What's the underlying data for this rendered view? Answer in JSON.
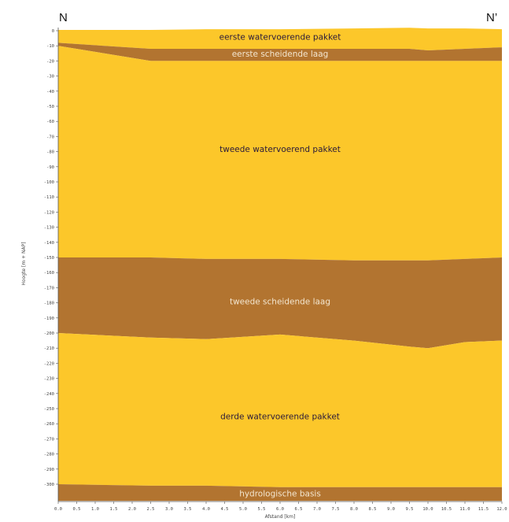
{
  "chart_data": {
    "type": "area",
    "corner_labels": {
      "left": "N",
      "right": "N’"
    },
    "xlabel": "Afstand [km]",
    "ylabel": "Hoogte [m + NAP]",
    "xlim": [
      0,
      12
    ],
    "ylim": [
      -311,
      2
    ],
    "xticks": [
      "0.0",
      "0.5",
      "1.0",
      "1.5",
      "2.0",
      "2.5",
      "3.0",
      "3.5",
      "4.0",
      "4.5",
      "5.0",
      "5.5",
      "6.0",
      "6.5",
      "7.0",
      "7.5",
      "8.0",
      "8.5",
      "9.0",
      "9.5",
      "10.0",
      "10.5",
      "11.0",
      "11.5",
      "12.0"
    ],
    "yticks": [
      0,
      -10,
      -20,
      -30,
      -40,
      -50,
      -60,
      -70,
      -80,
      -90,
      -100,
      -110,
      -120,
      -130,
      -140,
      -150,
      -160,
      -170,
      -180,
      -190,
      -200,
      -210,
      -220,
      -230,
      -240,
      -250,
      -260,
      -270,
      -280,
      -290,
      -300
    ],
    "grid": false,
    "colors": {
      "aquifer": "#FCC72A",
      "aquitard": "#B27430"
    },
    "x": [
      0,
      2.5,
      4,
      6,
      8,
      9.5,
      10,
      11,
      12
    ],
    "boundaries": {
      "surface": [
        0.5,
        0.5,
        1,
        1,
        1.5,
        2,
        1.5,
        1.5,
        1
      ],
      "top_scheidende_1": [
        -8,
        -12,
        -12,
        -12,
        -12,
        -12,
        -13,
        -12,
        -11
      ],
      "base_scheidende_1": [
        -10,
        -20,
        -20,
        -20,
        -20,
        -20,
        -20,
        -20,
        -20
      ],
      "top_scheidende_2": [
        -150,
        -150,
        -151,
        -151,
        -152,
        -152,
        -152,
        -151,
        -150
      ],
      "base_scheidende_2": [
        -200,
        -203,
        -204,
        -201,
        -205,
        -209,
        -210,
        -206,
        -205
      ],
      "top_basis": [
        -300,
        -301,
        -301,
        -302,
        -302,
        -302,
        -302,
        -302,
        -302
      ],
      "bottom": [
        -311,
        -311,
        -311,
        -311,
        -311,
        -311,
        -311,
        -311,
        -311
      ]
    },
    "layers": [
      {
        "name": "eerste watervoerende pakket",
        "top": "surface",
        "base": "top_scheidende_1",
        "kind": "aquifer",
        "label_color": "#2a1a3a",
        "label_y": -4
      },
      {
        "name": "eerste scheidende laag",
        "top": "top_scheidende_1",
        "base": "base_scheidende_1",
        "kind": "aquitard",
        "label_color": "#f3e6d0",
        "label_y": -15
      },
      {
        "name": "tweede watervoerend pakket",
        "top": "base_scheidende_1",
        "base": "top_scheidende_2",
        "kind": "aquifer",
        "label_color": "#2a1a3a",
        "label_y": -78
      },
      {
        "name": "tweede scheidende laag",
        "top": "top_scheidende_2",
        "base": "base_scheidende_2",
        "kind": "aquitard",
        "label_color": "#f3e6d0",
        "label_y": -179
      },
      {
        "name": "derde watervoerende pakket",
        "top": "base_scheidende_2",
        "base": "top_basis",
        "kind": "aquifer",
        "label_color": "#2a1a3a",
        "label_y": -255
      },
      {
        "name": "hydrologische basis",
        "top": "top_basis",
        "base": "bottom",
        "kind": "aquitard",
        "label_color": "#f3e6d0",
        "label_y": -306
      }
    ]
  }
}
